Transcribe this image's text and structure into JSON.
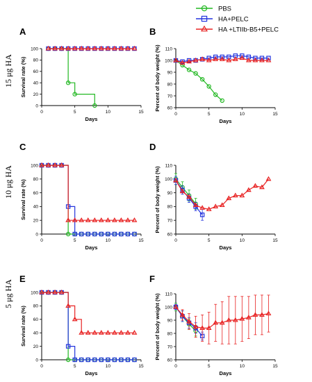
{
  "colors": {
    "PBS": "#22b822",
    "HA+PELC": "#2233dd",
    "HA +LTIIb-B5+PELC": "#e82222"
  },
  "legend": [
    {
      "name": "PBS",
      "marker": "circle"
    },
    {
      "name": "HA+PELC",
      "marker": "square"
    },
    {
      "name": "HA +LTIIb-B5+PELC",
      "marker": "triangle"
    }
  ],
  "row_labels": [
    "15 μg HA",
    "10 μg HA",
    "5 μg HA"
  ],
  "chart_data": [
    {
      "panel": "A",
      "type": "line",
      "step": true,
      "xlabel": "Days",
      "ylabel": "Survival rate (%)",
      "xlim": [
        0,
        15
      ],
      "ylim": [
        0,
        100
      ],
      "xticks": [
        0,
        5,
        10,
        15
      ],
      "yticks": [
        0,
        20,
        40,
        60,
        80,
        100
      ],
      "series": [
        {
          "name": "PBS",
          "x": [
            1,
            2,
            3,
            4,
            5,
            8
          ],
          "y": [
            100,
            100,
            100,
            40,
            20,
            0
          ],
          "markers": true
        },
        {
          "name": "HA+PELC",
          "x": [
            1,
            2,
            3,
            4,
            5,
            6,
            7,
            8,
            9,
            10,
            11,
            12,
            13,
            14
          ],
          "y": [
            100,
            100,
            100,
            100,
            100,
            100,
            100,
            100,
            100,
            100,
            100,
            100,
            100,
            100
          ],
          "markers": true
        },
        {
          "name": "HA +LTIIb-B5+PELC",
          "x": [
            1,
            2,
            3,
            4,
            5,
            6,
            7,
            8,
            9,
            10,
            11,
            12,
            13,
            14
          ],
          "y": [
            100,
            100,
            100,
            100,
            100,
            100,
            100,
            100,
            100,
            100,
            100,
            100,
            100,
            100
          ],
          "markers": true
        }
      ]
    },
    {
      "panel": "B",
      "type": "line",
      "step": false,
      "xlabel": "Days",
      "ylabel": "Percent of body weight (%)",
      "xlim": [
        0,
        15
      ],
      "ylim": [
        60,
        110
      ],
      "xticks": [
        0,
        5,
        10,
        15
      ],
      "yticks": [
        60,
        70,
        80,
        90,
        100,
        110
      ],
      "series": [
        {
          "name": "PBS",
          "x": [
            0,
            1,
            2,
            3,
            4,
            5,
            6,
            7
          ],
          "y": [
            100,
            96,
            92,
            89,
            84,
            78,
            71,
            66
          ]
        },
        {
          "name": "HA+PELC",
          "x": [
            0,
            1,
            2,
            3,
            4,
            5,
            6,
            7,
            8,
            9,
            10,
            11,
            12,
            13,
            14
          ],
          "y": [
            100,
            99,
            100,
            100,
            101,
            102,
            103,
            103,
            103,
            104,
            104,
            103,
            102,
            102,
            102
          ]
        },
        {
          "name": "HA +LTIIb-B5+PELC",
          "x": [
            0,
            1,
            2,
            3,
            4,
            5,
            6,
            7,
            8,
            9,
            10,
            11,
            12,
            13,
            14
          ],
          "y": [
            100,
            98,
            99,
            100,
            101,
            100,
            101,
            101,
            100,
            101,
            102,
            100,
            100,
            100,
            100
          ]
        }
      ]
    },
    {
      "panel": "C",
      "type": "line",
      "step": true,
      "xlabel": "Days",
      "ylabel": "Survival rate (%)",
      "xlim": [
        0,
        15
      ],
      "ylim": [
        0,
        100
      ],
      "xticks": [
        0,
        5,
        10,
        15
      ],
      "yticks": [
        0,
        20,
        40,
        60,
        80,
        100
      ],
      "series": [
        {
          "name": "PBS",
          "x": [
            0,
            1,
            2,
            3,
            4,
            5,
            6,
            7,
            8,
            9,
            10,
            11,
            12,
            13,
            14
          ],
          "y": [
            100,
            100,
            100,
            100,
            0,
            0,
            0,
            0,
            0,
            0,
            0,
            0,
            0,
            0,
            0
          ],
          "markers": true
        },
        {
          "name": "HA+PELC",
          "x": [
            0,
            1,
            2,
            3,
            4,
            5,
            6,
            7,
            8,
            9,
            10,
            11,
            12,
            13,
            14
          ],
          "y": [
            100,
            100,
            100,
            100,
            40,
            0,
            0,
            0,
            0,
            0,
            0,
            0,
            0,
            0,
            0
          ],
          "markers": true
        },
        {
          "name": "HA +LTIIb-B5+PELC",
          "x": [
            0,
            1,
            2,
            3,
            4,
            5,
            6,
            7,
            8,
            9,
            10,
            11,
            12,
            13,
            14
          ],
          "y": [
            100,
            100,
            100,
            100,
            20,
            20,
            20,
            20,
            20,
            20,
            20,
            20,
            20,
            20,
            20
          ],
          "markers": true
        }
      ]
    },
    {
      "panel": "D",
      "type": "line",
      "step": false,
      "xlabel": "Days",
      "ylabel": "Percent of body weight (%)",
      "xlim": [
        0,
        15
      ],
      "ylim": [
        60,
        110
      ],
      "xticks": [
        0,
        5,
        10,
        15
      ],
      "yticks": [
        60,
        70,
        80,
        90,
        100,
        110
      ],
      "series": [
        {
          "name": "PBS",
          "x": [
            0,
            1,
            2,
            3
          ],
          "y": [
            100,
            94,
            88,
            82
          ],
          "err": [
            4,
            4,
            4,
            4
          ]
        },
        {
          "name": "HA+PELC",
          "x": [
            0,
            1,
            2,
            3,
            4
          ],
          "y": [
            99,
            92,
            86,
            80,
            74
          ],
          "err": [
            3,
            3,
            3,
            3,
            4
          ]
        },
        {
          "name": "HA +LTIIb-B5+PELC",
          "x": [
            0,
            1,
            2,
            3,
            4,
            5,
            6,
            7,
            8,
            9,
            10,
            11,
            12,
            13,
            14
          ],
          "y": [
            99,
            91,
            87,
            81,
            79,
            78,
            80,
            81,
            86,
            88,
            88,
            92,
            95,
            94,
            100
          ],
          "err": [
            0,
            0,
            0,
            0,
            0,
            0,
            0,
            0,
            0,
            0,
            0,
            0,
            0,
            0,
            0
          ]
        }
      ]
    },
    {
      "panel": "E",
      "type": "line",
      "step": true,
      "xlabel": "Days",
      "ylabel": "Survival rate (%)",
      "xlim": [
        0,
        15
      ],
      "ylim": [
        0,
        100
      ],
      "xticks": [
        0,
        5,
        10,
        15
      ],
      "yticks": [
        0,
        20,
        40,
        60,
        80,
        100
      ],
      "series": [
        {
          "name": "PBS",
          "x": [
            0,
            1,
            2,
            3,
            4,
            5,
            6,
            7,
            8,
            9,
            10,
            11,
            12,
            13,
            14
          ],
          "y": [
            100,
            100,
            100,
            100,
            0,
            0,
            0,
            0,
            0,
            0,
            0,
            0,
            0,
            0,
            0
          ],
          "markers": true
        },
        {
          "name": "HA+PELC",
          "x": [
            0,
            1,
            2,
            3,
            4,
            5,
            6,
            7,
            8,
            9,
            10,
            11,
            12,
            13,
            14
          ],
          "y": [
            100,
            100,
            100,
            100,
            20,
            0,
            0,
            0,
            0,
            0,
            0,
            0,
            0,
            0,
            0
          ],
          "markers": true
        },
        {
          "name": "HA +LTIIb-B5+PELC",
          "x": [
            0,
            1,
            2,
            3,
            4,
            5,
            6,
            7,
            8,
            9,
            10,
            11,
            12,
            13,
            14
          ],
          "y": [
            100,
            100,
            100,
            100,
            80,
            60,
            40,
            40,
            40,
            40,
            40,
            40,
            40,
            40,
            40
          ],
          "markers": true
        }
      ]
    },
    {
      "panel": "F",
      "type": "line",
      "step": false,
      "xlabel": "Days",
      "ylabel": "Percent of body weight (%)",
      "xlim": [
        0,
        15
      ],
      "ylim": [
        60,
        110
      ],
      "xticks": [
        0,
        5,
        10,
        15
      ],
      "yticks": [
        60,
        70,
        80,
        90,
        100,
        110
      ],
      "series": [
        {
          "name": "PBS",
          "x": [
            0,
            1,
            2,
            3
          ],
          "y": [
            100,
            93,
            87,
            82
          ],
          "err": [
            3,
            4,
            4,
            4
          ]
        },
        {
          "name": "HA+PELC",
          "x": [
            0,
            1,
            2,
            3,
            4
          ],
          "y": [
            100,
            93,
            88,
            84,
            78
          ],
          "err": [
            2,
            4,
            4,
            4,
            3
          ]
        },
        {
          "name": "HA +LTIIb-B5+PELC",
          "x": [
            0,
            1,
            2,
            3,
            4,
            5,
            6,
            7,
            8,
            9,
            10,
            11,
            12,
            13,
            14
          ],
          "y": [
            100,
            94,
            89,
            85,
            84,
            84,
            88,
            88,
            90,
            90,
            91,
            92,
            94,
            94,
            95
          ],
          "err": [
            0,
            4,
            6,
            8,
            10,
            12,
            14,
            16,
            18,
            18,
            17,
            16,
            15,
            15,
            14
          ]
        }
      ]
    }
  ]
}
